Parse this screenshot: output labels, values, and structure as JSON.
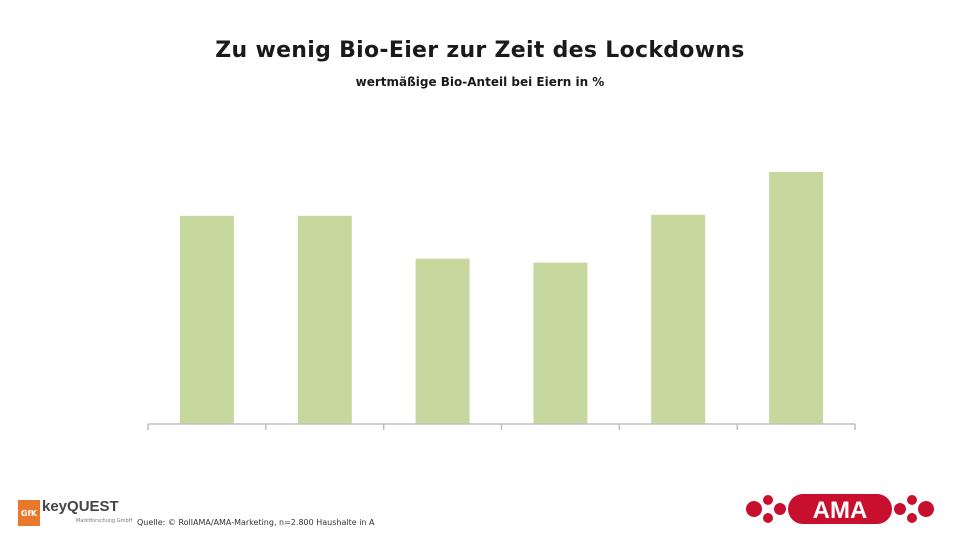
{
  "header": {
    "title": "Zu wenig Bio-Eier zur Zeit des Lockdowns",
    "subtitle": "wertmäßige Bio-Anteil bei Eiern in %"
  },
  "footer": {
    "source": "Quelle: © RollAMA/AMA-Marketing, n=2.800 Haushalte in A"
  },
  "logos": {
    "gfk": "GfK",
    "keyquest_key": "key",
    "keyquest_quest": "QUEST",
    "keyquest_sub": "Marktforschung GmbH",
    "ama": "AMA"
  },
  "colors": {
    "bar": "#c6d89e",
    "axis": "#bfbfbf",
    "ama_red": "#c8102e"
  },
  "chart_data": {
    "type": "bar",
    "categories": [
      "",
      "",
      "",
      "",
      "",
      ""
    ],
    "values": [
      20.9,
      20.9,
      16.6,
      16.2,
      21.0,
      25.3
    ],
    "ylim": [
      0,
      25.3
    ],
    "grid": false,
    "legend": "none"
  }
}
